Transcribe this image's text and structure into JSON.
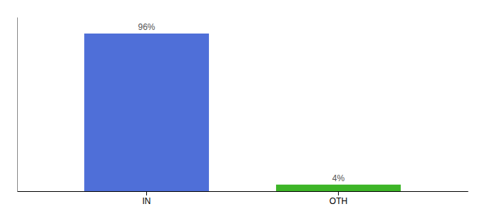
{
  "chart_data": {
    "type": "bar",
    "categories": [
      "IN",
      "OTH"
    ],
    "values": [
      96,
      4
    ],
    "value_labels": [
      "96%",
      "4%"
    ],
    "colors": [
      "#4f6fd8",
      "#3db527"
    ],
    "ylim": [
      0,
      106
    ],
    "data_labels": true,
    "tick_labels": "x"
  }
}
